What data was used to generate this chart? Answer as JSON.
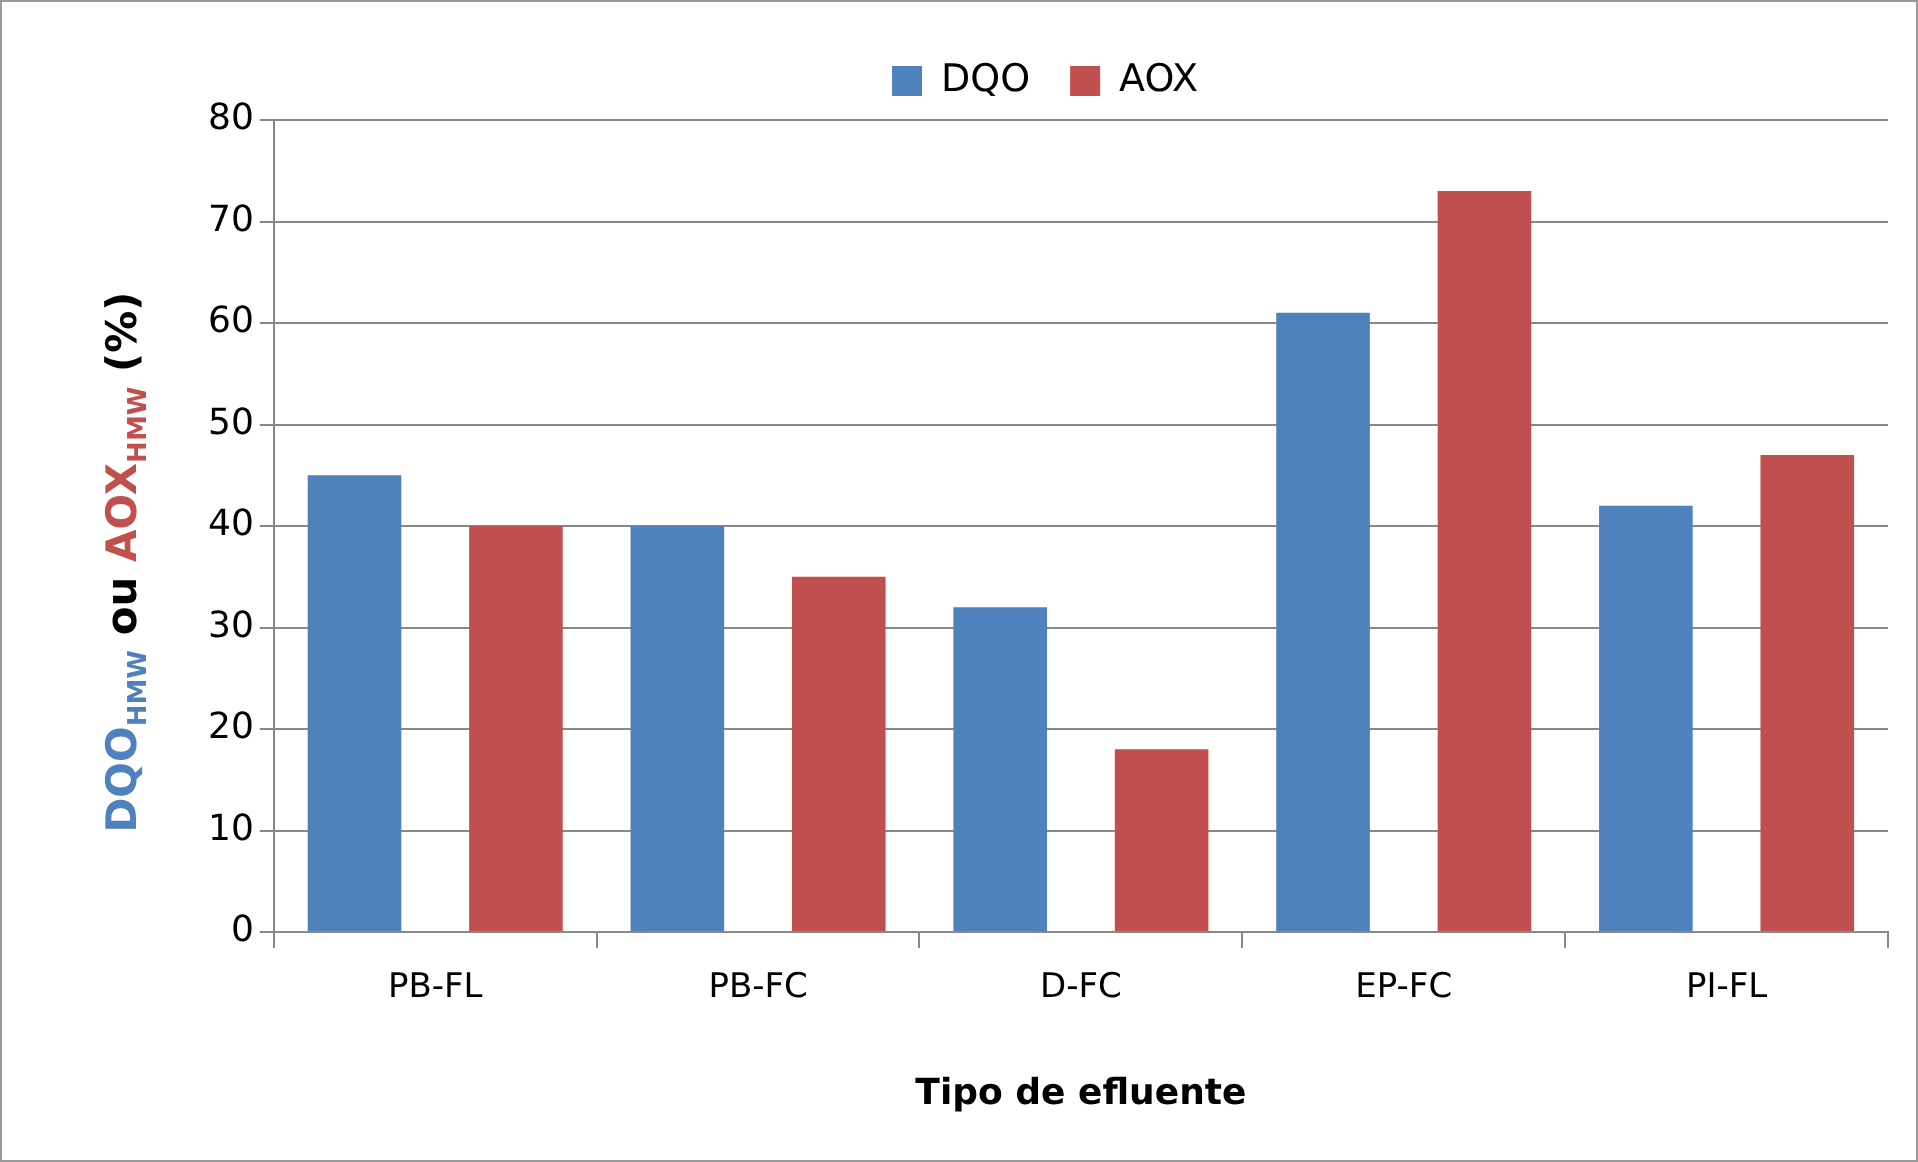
{
  "chart_data": {
    "type": "bar",
    "categories": [
      "PB-FL",
      "PB-FC",
      "D-FC",
      "EP-FC",
      "PI-FL"
    ],
    "series": [
      {
        "name": "DQO",
        "color": "#4f81bd",
        "values": [
          45,
          40,
          32,
          61,
          42
        ]
      },
      {
        "name": "AOX",
        "color": "#c0504d",
        "values": [
          40,
          35,
          18,
          73,
          47
        ]
      }
    ],
    "xlabel": "Tipo de efluente",
    "ylabel": "DQO$_{HMW}$ ou AOX$_{HMW}$ (%)",
    "ylim": [
      0,
      80
    ],
    "yticks": [
      0,
      10,
      20,
      30,
      40,
      50,
      60,
      70,
      80
    ],
    "grid": "y",
    "legend": "top"
  }
}
